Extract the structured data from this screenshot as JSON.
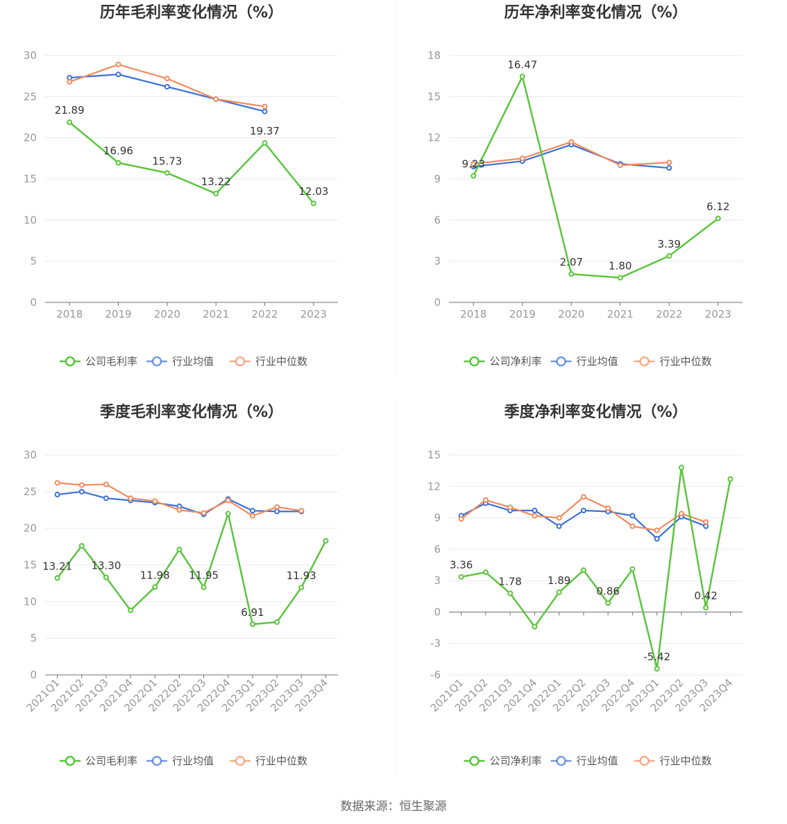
{
  "source": "数据来源：恒生聚源",
  "colors": {
    "company": "#5ac53c",
    "avg": "#3b6fd6",
    "median": "#f28a5c"
  },
  "legend_names": {
    "gross": [
      "公司毛利率",
      "行业均值",
      "行业中位数"
    ],
    "net": [
      "公司净利率",
      "行业均值",
      "行业中位数"
    ]
  },
  "chart_data": [
    {
      "type": "line",
      "title": "历年毛利率变化情况（%）",
      "categories": [
        "2018",
        "2019",
        "2020",
        "2021",
        "2022",
        "2023"
      ],
      "ylim": [
        0,
        30
      ],
      "yticks": [
        0,
        5,
        10,
        15,
        20,
        25,
        30
      ],
      "series": [
        {
          "name": "公司毛利率",
          "values": [
            21.89,
            16.96,
            15.73,
            13.22,
            19.37,
            12.03
          ],
          "labels": [
            "21.89",
            "16.96",
            "15.73",
            "13.22",
            "19.37",
            "12.03"
          ]
        },
        {
          "name": "行业均值",
          "values": [
            27.3,
            27.7,
            26.2,
            24.7,
            23.2,
            null
          ]
        },
        {
          "name": "行业中位数",
          "values": [
            26.8,
            28.9,
            27.2,
            24.7,
            23.8,
            null
          ]
        }
      ],
      "grid": true,
      "legend": "bottom"
    },
    {
      "type": "line",
      "title": "历年净利率变化情况（%）",
      "categories": [
        "2018",
        "2019",
        "2020",
        "2021",
        "2022",
        "2023"
      ],
      "ylim": [
        0,
        18
      ],
      "yticks": [
        0,
        3,
        6,
        9,
        12,
        15,
        18
      ],
      "series": [
        {
          "name": "公司净利率",
          "values": [
            9.23,
            16.47,
            2.07,
            1.8,
            3.39,
            6.12
          ],
          "labels": [
            "9.23",
            "16.47",
            "2.07",
            "1.80",
            "3.39",
            "6.12"
          ]
        },
        {
          "name": "行业均值",
          "values": [
            9.9,
            10.3,
            11.5,
            10.1,
            9.8,
            null
          ]
        },
        {
          "name": "行业中位数",
          "values": [
            10.1,
            10.5,
            11.7,
            10.0,
            10.2,
            null
          ]
        }
      ],
      "grid": true,
      "legend": "bottom"
    },
    {
      "type": "line",
      "title": "季度毛利率变化情况（%）",
      "categories": [
        "2021Q1",
        "2021Q2",
        "2021Q3",
        "2021Q4",
        "2022Q1",
        "2022Q2",
        "2022Q3",
        "2022Q4",
        "2023Q1",
        "2023Q2",
        "2023Q3",
        "2023Q4"
      ],
      "ylim": [
        0,
        30
      ],
      "yticks": [
        0,
        5,
        10,
        15,
        20,
        25,
        30
      ],
      "series": [
        {
          "name": "公司毛利率",
          "values": [
            13.21,
            17.6,
            13.3,
            8.8,
            11.98,
            17.1,
            11.95,
            22.0,
            6.91,
            7.2,
            11.93,
            18.3
          ],
          "labels": [
            "13.21",
            "",
            "13.30",
            "",
            "11.98",
            "",
            "11.95",
            "",
            "6.91",
            "",
            "11.93",
            ""
          ]
        },
        {
          "name": "行业均值",
          "values": [
            24.6,
            25.0,
            24.1,
            23.8,
            23.5,
            23.0,
            21.9,
            24.0,
            22.4,
            22.3,
            22.3,
            null
          ]
        },
        {
          "name": "行业中位数",
          "values": [
            26.2,
            25.9,
            26.0,
            24.1,
            23.7,
            22.5,
            22.1,
            23.8,
            21.7,
            22.9,
            22.4,
            null
          ]
        }
      ],
      "grid": true,
      "legend": "bottom"
    },
    {
      "type": "line",
      "title": "季度净利率变化情况（%）",
      "categories": [
        "2021Q1",
        "2021Q2",
        "2021Q3",
        "2021Q4",
        "2022Q1",
        "2022Q2",
        "2022Q3",
        "2022Q4",
        "2023Q1",
        "2023Q2",
        "2023Q3",
        "2023Q4"
      ],
      "ylim": [
        -6,
        15
      ],
      "yticks": [
        -6,
        -3,
        0,
        3,
        6,
        9,
        12,
        15
      ],
      "series": [
        {
          "name": "公司净利率",
          "values": [
            3.36,
            3.8,
            1.78,
            -1.4,
            1.89,
            4.0,
            0.86,
            4.1,
            -5.42,
            13.8,
            0.42,
            12.7
          ],
          "labels": [
            "3.36",
            "",
            "1.78",
            "",
            "1.89",
            "",
            "0.86",
            "",
            "-5.42",
            "",
            "0.42",
            ""
          ]
        },
        {
          "name": "行业均值",
          "values": [
            9.2,
            10.4,
            9.7,
            9.7,
            8.2,
            9.7,
            9.6,
            9.2,
            7.0,
            9.1,
            8.2,
            null
          ]
        },
        {
          "name": "行业中位数",
          "values": [
            8.9,
            10.7,
            10.0,
            9.2,
            9.0,
            11.0,
            9.9,
            8.2,
            7.8,
            9.4,
            8.6,
            null
          ]
        }
      ],
      "grid": true,
      "legend": "bottom"
    }
  ]
}
